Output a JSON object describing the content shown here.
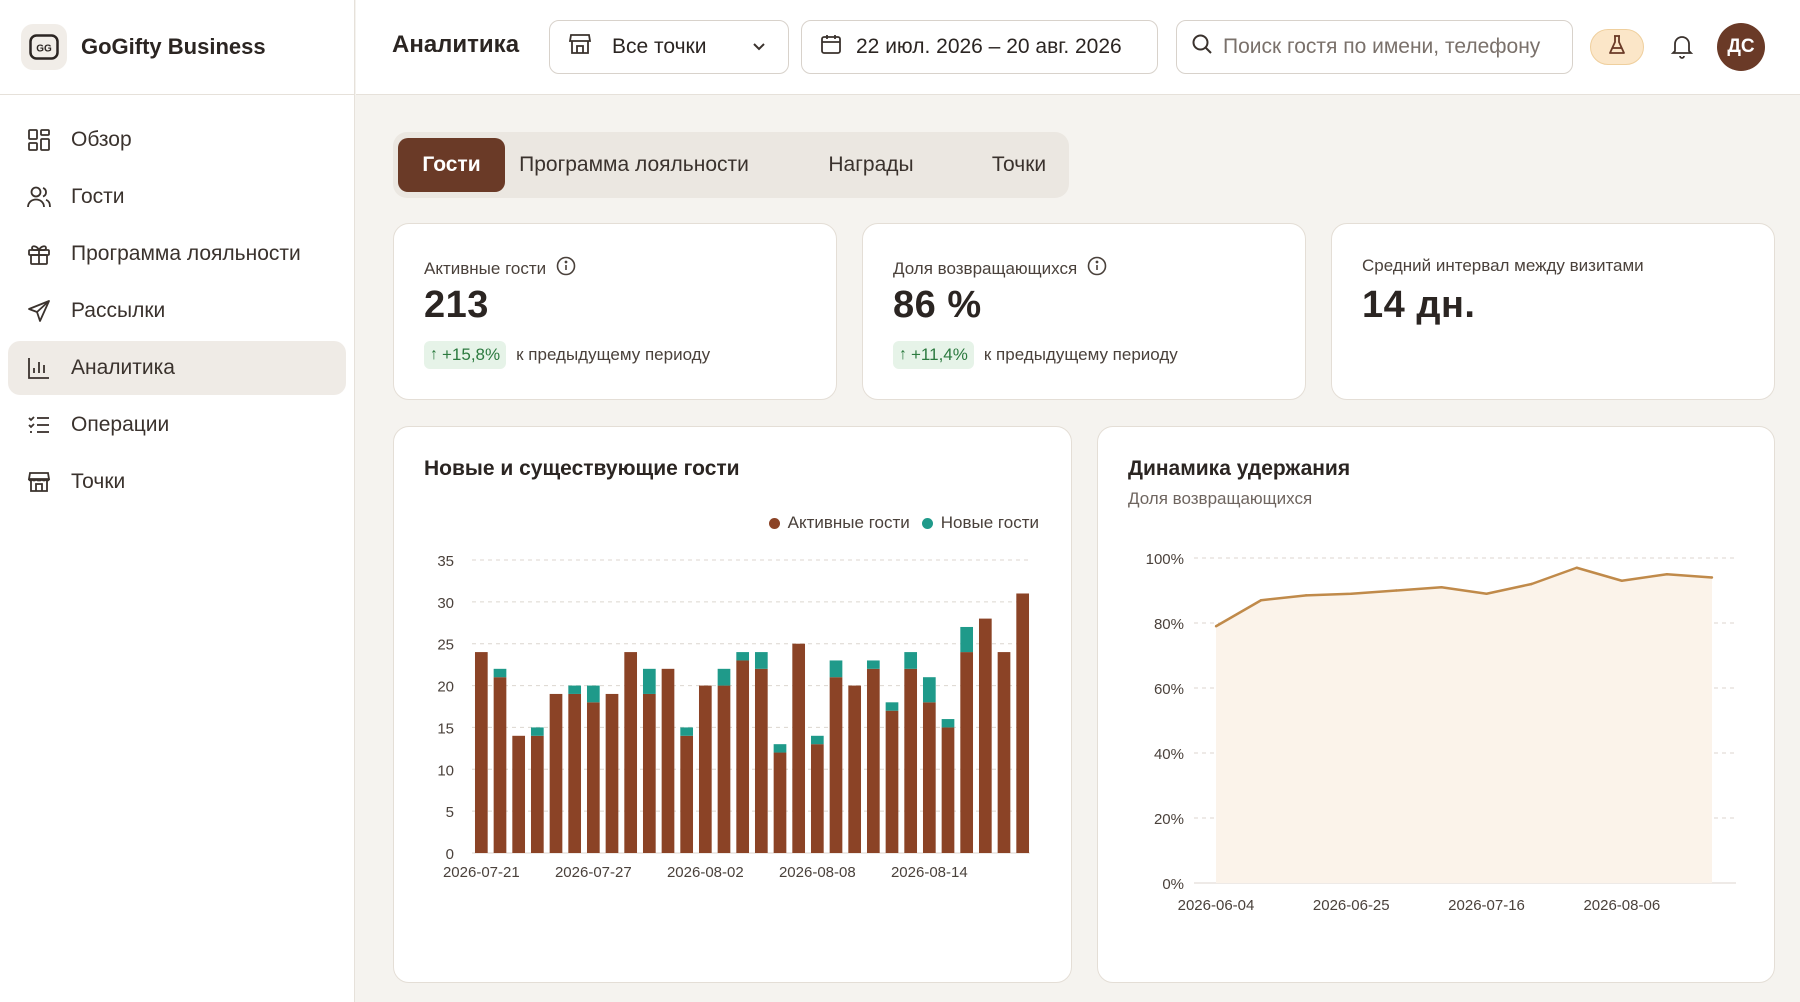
{
  "brand": {
    "name": "GoGifty Business",
    "logo_text": "GG"
  },
  "sidebar": {
    "items": [
      {
        "label": "Обзор",
        "icon": "dashboard-icon"
      },
      {
        "label": "Гости",
        "icon": "users-icon"
      },
      {
        "label": "Программа лояльности",
        "icon": "gift-icon"
      },
      {
        "label": "Рассылки",
        "icon": "send-icon"
      },
      {
        "label": "Аналитика",
        "icon": "bar-chart-icon",
        "active": true
      },
      {
        "label": "Операции",
        "icon": "checklist-icon"
      },
      {
        "label": "Точки",
        "icon": "store-icon"
      }
    ]
  },
  "header": {
    "title": "Аналитика",
    "store_select": "Все точки",
    "date_range": "22 июл. 2026 – 20 авг. 2026",
    "search_placeholder": "Поиск гостя по имени, телефону",
    "avatar_initials": "ДС"
  },
  "tabs": [
    {
      "label": "Гости",
      "active": true
    },
    {
      "label": "Программа лояльности"
    },
    {
      "label": "Награды"
    },
    {
      "label": "Точки"
    }
  ],
  "kpis": {
    "active_guests": {
      "label": "Активные гости",
      "value": "213",
      "delta": "+15,8%",
      "delta_text": "к предыдущему периоду"
    },
    "returning_share": {
      "label": "Доля возвращающихся",
      "value": "86 %",
      "delta": "+11,4%",
      "delta_text": "к предыдущему периоду"
    },
    "avg_interval": {
      "label": "Средний интервал между визитами",
      "value": "14 дн."
    }
  },
  "colors": {
    "accent": "#6a3a27",
    "active_bar": "#8b4326",
    "new_bar": "#1f9a8a",
    "line": "#c08a4a",
    "area": "#fbf3ea",
    "positive": "#2c7a3f"
  },
  "chart_data": [
    {
      "type": "bar",
      "stacked": true,
      "title": "Новые и существующие гости",
      "legend_position": "top-right",
      "x": [
        "2026-07-21",
        "2026-07-22",
        "2026-07-23",
        "2026-07-24",
        "2026-07-25",
        "2026-07-26",
        "2026-07-27",
        "2026-07-28",
        "2026-07-29",
        "2026-07-30",
        "2026-07-31",
        "2026-08-01",
        "2026-08-02",
        "2026-08-03",
        "2026-08-04",
        "2026-08-05",
        "2026-08-06",
        "2026-08-07",
        "2026-08-08",
        "2026-08-09",
        "2026-08-10",
        "2026-08-11",
        "2026-08-12",
        "2026-08-13",
        "2026-08-14",
        "2026-08-15",
        "2026-08-16",
        "2026-08-17",
        "2026-08-18",
        "2026-08-19"
      ],
      "tick_labels": [
        "2026-07-21",
        "2026-07-27",
        "2026-08-02",
        "2026-08-08",
        "2026-08-14"
      ],
      "series": [
        {
          "name": "Активные гости",
          "values": [
            24,
            21,
            14,
            14,
            19,
            19,
            18,
            19,
            24,
            19,
            22,
            14,
            20,
            20,
            23,
            22,
            12,
            25,
            13,
            21,
            20,
            22,
            17,
            22,
            18,
            15,
            24,
            28,
            24,
            31
          ]
        },
        {
          "name": "Новые гости",
          "values": [
            0,
            1,
            0,
            1,
            0,
            1,
            2,
            0,
            0,
            3,
            0,
            1,
            0,
            2,
            1,
            2,
            1,
            0,
            1,
            2,
            0,
            1,
            1,
            2,
            3,
            1,
            3,
            0,
            0,
            0
          ]
        }
      ],
      "ylim": [
        0,
        35
      ],
      "yticks": [
        0,
        5,
        10,
        15,
        20,
        25,
        30,
        35
      ],
      "grid": true
    },
    {
      "type": "area",
      "title": "Динамика удержания",
      "subtitle": "Доля возвращающихся",
      "x": [
        "2026-06-04",
        "2026-06-11",
        "2026-06-18",
        "2026-06-25",
        "2026-07-02",
        "2026-07-09",
        "2026-07-16",
        "2026-07-23",
        "2026-07-30",
        "2026-08-06",
        "2026-08-13",
        "2026-08-20"
      ],
      "tick_labels": [
        "2026-06-04",
        "2026-06-25",
        "2026-07-16",
        "2026-08-06"
      ],
      "values": [
        79,
        87,
        88.5,
        89,
        90,
        91,
        89,
        92,
        97,
        93,
        95,
        94
      ],
      "ylim": [
        0,
        100
      ],
      "yticks": [
        "0%",
        "20%",
        "40%",
        "60%",
        "80%",
        "100%"
      ],
      "grid": true
    }
  ]
}
